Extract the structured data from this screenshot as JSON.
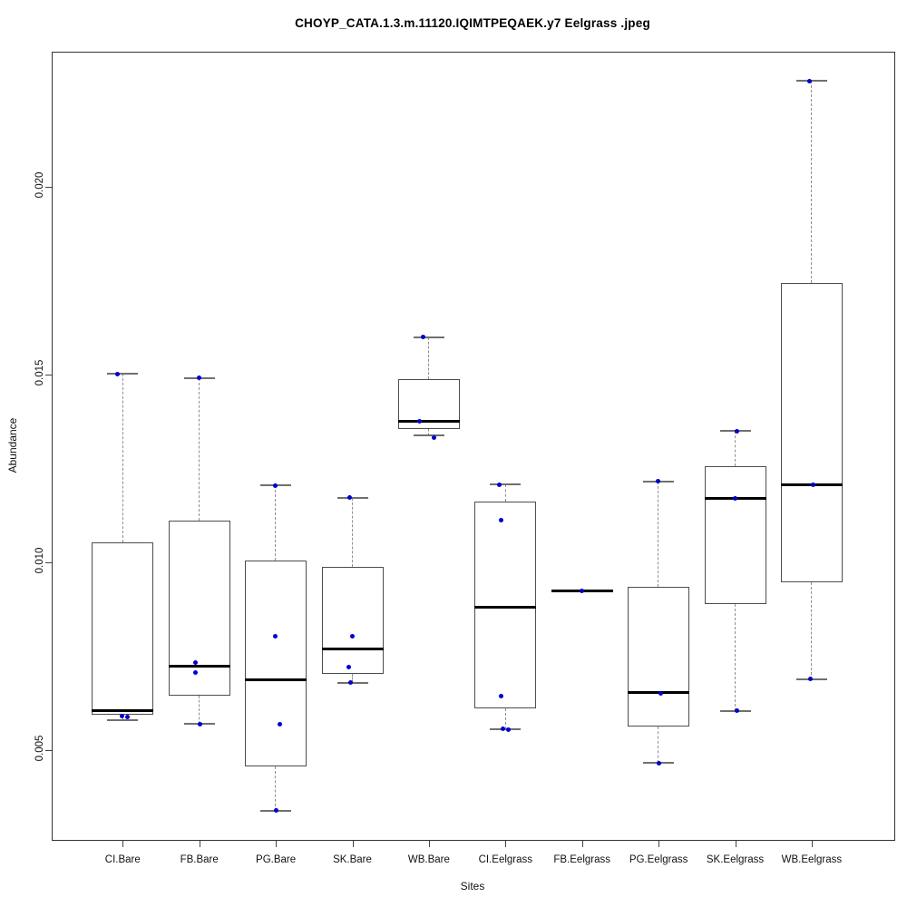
{
  "chart_data": {
    "type": "boxplot",
    "title": "CHOYP_CATA.1.3.m.11120.IQIMTPEQAEK.y7 Eelgrass .jpeg",
    "xlabel": "Sites",
    "ylabel": "Abundance",
    "ylim": [
      0.00262,
      0.02358
    ],
    "yticks": [
      0.005,
      0.01,
      0.015,
      0.02
    ],
    "ytick_labels": [
      "0.005",
      "0.010",
      "0.015",
      "0.020"
    ],
    "grid": false,
    "legend": "none",
    "point_color": "#0000d0",
    "categories": [
      "CI.Bare",
      "FB.Bare",
      "PG.Bare",
      "SK.Bare",
      "WB.Bare",
      "CI.Eelgrass",
      "FB.Eelgrass",
      "PG.Eelgrass",
      "SK.Eelgrass",
      "WB.Eelgrass"
    ],
    "groups": [
      {
        "name": "CI.Bare",
        "lo": 0.0058,
        "q1": 0.00596,
        "med": 0.00605,
        "q3": 0.01053,
        "hi": 0.01503,
        "points": [
          {
            "v": 0.01503,
            "dx": -6
          },
          {
            "v": 0.00592,
            "dx": -1
          },
          {
            "v": 0.00588,
            "dx": 5
          }
        ]
      },
      {
        "name": "FB.Bare",
        "lo": 0.0057,
        "q1": 0.00645,
        "med": 0.00725,
        "q3": 0.01113,
        "hi": 0.01492,
        "points": [
          {
            "v": 0.01492,
            "dx": 0
          },
          {
            "v": 0.00735,
            "dx": -4
          },
          {
            "v": 0.00708,
            "dx": -4
          },
          {
            "v": 0.0057,
            "dx": 1
          }
        ]
      },
      {
        "name": "PG.Bare",
        "lo": 0.0034,
        "q1": 0.00458,
        "med": 0.00688,
        "q3": 0.01005,
        "hi": 0.01205,
        "points": [
          {
            "v": 0.01205,
            "dx": -1
          },
          {
            "v": 0.00803,
            "dx": -1
          },
          {
            "v": 0.0057,
            "dx": 4
          },
          {
            "v": 0.0034,
            "dx": 0
          }
        ]
      },
      {
        "name": "SK.Bare",
        "lo": 0.0068,
        "q1": 0.00703,
        "med": 0.0077,
        "q3": 0.0099,
        "hi": 0.01173,
        "points": [
          {
            "v": 0.01173,
            "dx": -3
          },
          {
            "v": 0.00805,
            "dx": 0
          },
          {
            "v": 0.00723,
            "dx": -4
          },
          {
            "v": 0.0068,
            "dx": -2
          }
        ]
      },
      {
        "name": "WB.Bare",
        "lo": 0.0134,
        "q1": 0.01355,
        "med": 0.01377,
        "q3": 0.01488,
        "hi": 0.016,
        "points": [
          {
            "v": 0.016,
            "dx": -6
          },
          {
            "v": 0.01377,
            "dx": -10
          },
          {
            "v": 0.01333,
            "dx": 6
          }
        ]
      },
      {
        "name": "CI.Eelgrass",
        "lo": 0.00557,
        "q1": 0.00612,
        "med": 0.00882,
        "q3": 0.01162,
        "hi": 0.01208,
        "points": [
          {
            "v": 0.01208,
            "dx": -7
          },
          {
            "v": 0.01113,
            "dx": -5
          },
          {
            "v": 0.00645,
            "dx": -5
          },
          {
            "v": 0.00558,
            "dx": -3
          },
          {
            "v": 0.00555,
            "dx": 3
          }
        ]
      },
      {
        "name": "FB.Eelgrass",
        "lo": 0.00925,
        "q1": 0.00925,
        "med": 0.00925,
        "q3": 0.00925,
        "hi": 0.00925,
        "points": [
          {
            "v": 0.00925,
            "dx": 0
          }
        ]
      },
      {
        "name": "PG.Eelgrass",
        "lo": 0.00467,
        "q1": 0.00563,
        "med": 0.00655,
        "q3": 0.00935,
        "hi": 0.01217,
        "points": [
          {
            "v": 0.01217,
            "dx": -1
          },
          {
            "v": 0.00653,
            "dx": 2
          },
          {
            "v": 0.00467,
            "dx": 0
          }
        ]
      },
      {
        "name": "SK.Eelgrass",
        "lo": 0.00605,
        "q1": 0.00891,
        "med": 0.01171,
        "q3": 0.01258,
        "hi": 0.0135,
        "points": [
          {
            "v": 0.0135,
            "dx": 2
          },
          {
            "v": 0.0117,
            "dx": 0
          },
          {
            "v": 0.00605,
            "dx": 2
          }
        ]
      },
      {
        "name": "WB.Eelgrass",
        "lo": 0.0069,
        "q1": 0.00947,
        "med": 0.01208,
        "q3": 0.01744,
        "hi": 0.02282,
        "points": [
          {
            "v": 0.02282,
            "dx": -2
          },
          {
            "v": 0.01208,
            "dx": 2
          },
          {
            "v": 0.0069,
            "dx": -1
          }
        ]
      }
    ]
  }
}
